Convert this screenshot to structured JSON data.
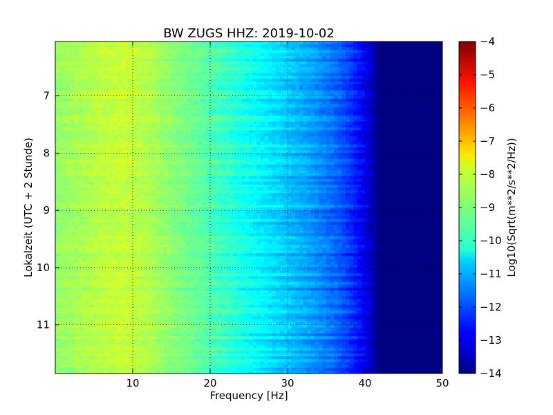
{
  "chart_data": {
    "type": "heatmap",
    "title": "BW ZUGS HHZ: 2019-10-02",
    "xlabel": "Frequency [Hz]",
    "ylabel": "Lokalzeit (UTC + 2 Stunde)",
    "xlim": [
      0,
      50
    ],
    "ylim": [
      6.05,
      11.85
    ],
    "y_inverted": true,
    "x_ticks": [
      10,
      20,
      30,
      40,
      50
    ],
    "x_tick_labels": [
      "10",
      "20",
      "30",
      "40",
      "50"
    ],
    "y_ticks": [
      7,
      8,
      9,
      10,
      11
    ],
    "y_tick_labels": [
      "7",
      "8",
      "9",
      "10",
      "11"
    ],
    "grid": true,
    "colormap": "jet",
    "colorbar": {
      "label": "Log10(Sqrt(m**2/s**2/Hz))",
      "range": [
        -14,
        -4
      ],
      "ticks": [
        -4,
        -5,
        -6,
        -7,
        -8,
        -9,
        -10,
        -11,
        -12,
        -13,
        -14
      ],
      "tick_labels": [
        "−4",
        "−5",
        "−6",
        "−7",
        "−8",
        "−9",
        "−10",
        "−11",
        "−12",
        "−13",
        "−14"
      ]
    },
    "spectrum_profile": {
      "frequency_hz": [
        0,
        3,
        6,
        9,
        12,
        15,
        18,
        21,
        24,
        27,
        30,
        33,
        36,
        38,
        40,
        41,
        42,
        50
      ],
      "log_amplitude": [
        -8.8,
        -8.6,
        -8.4,
        -8.3,
        -8.5,
        -8.9,
        -9.2,
        -9.6,
        -10.0,
        -10.4,
        -10.8,
        -11.2,
        -11.7,
        -12.2,
        -12.9,
        -13.5,
        -14.0,
        -14.0
      ]
    }
  }
}
